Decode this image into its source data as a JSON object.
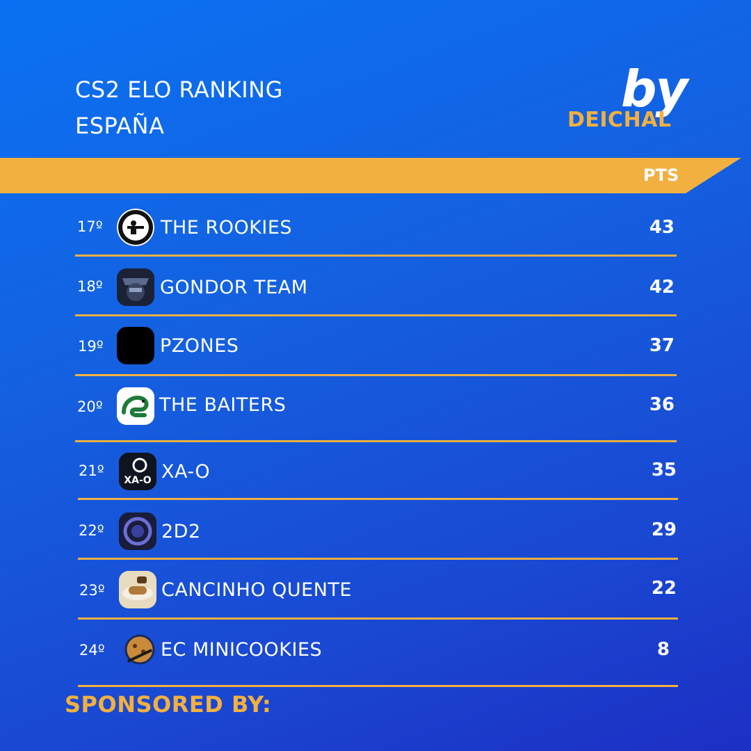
{
  "header": {
    "title_line1": "CS2 ELO RANKING",
    "title_line2": "ESPAÑA",
    "brand_by": "by",
    "brand_name": "DEICHAL"
  },
  "table": {
    "points_header": "PTS",
    "rows": [
      {
        "rank": "17º",
        "team": "THE ROOKIES",
        "points": "43",
        "logo": "rookies-logo"
      },
      {
        "rank": "18º",
        "team": "GONDOR TEAM",
        "points": "42",
        "logo": "gondor-logo"
      },
      {
        "rank": "19º",
        "team": "PZONES",
        "points": "37",
        "logo": "pzones-logo"
      },
      {
        "rank": "20º",
        "team": "THE BAITERS",
        "points": "36",
        "logo": "baiters-snake-logo"
      },
      {
        "rank": "21º",
        "team": "XA-O",
        "points": "35",
        "logo": "xao-logo"
      },
      {
        "rank": "22º",
        "team": "2D2",
        "points": "29",
        "logo": "2d2-logo"
      },
      {
        "rank": "23º",
        "team": "CANCINHO QUENTE",
        "points": "22",
        "logo": "cancinho-logo"
      },
      {
        "rank": "24º",
        "team": "EC MINICOOKIES",
        "points": "8",
        "logo": "minicookies-logo"
      }
    ]
  },
  "footer": {
    "sponsored_label": "SPONSORED BY:"
  },
  "colors": {
    "accent": "#f2b041",
    "background_top": "#0a72f2",
    "background_bottom": "#1c2fc4",
    "text": "#ffffff"
  }
}
